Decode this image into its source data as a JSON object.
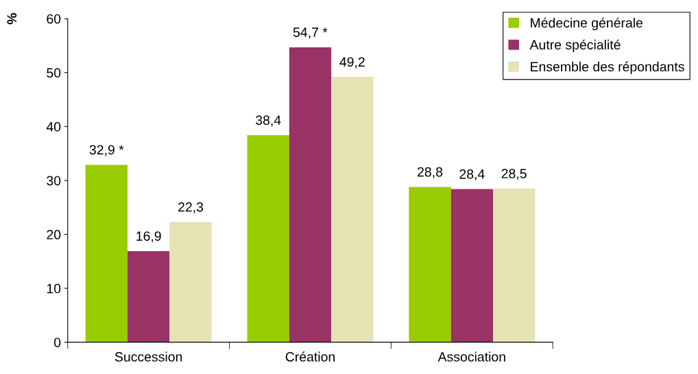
{
  "chart_data": {
    "type": "bar",
    "ylabel": "%",
    "categories": [
      "Succession",
      "Création",
      "Association"
    ],
    "series": [
      {
        "name": "Médecine générale",
        "color": "#99cc00",
        "values": [
          32.9,
          38.4,
          28.8
        ],
        "value_labels": [
          "32,9 *",
          "38,4",
          "28,8"
        ]
      },
      {
        "name": "Autre spécialité",
        "color": "#993366",
        "values": [
          16.9,
          54.7,
          28.4
        ],
        "value_labels": [
          "16,9",
          "54,7 *",
          "28,4"
        ]
      },
      {
        "name": "Ensemble des répondants",
        "color": "#e6e2b4",
        "values": [
          22.3,
          49.2,
          28.5
        ],
        "value_labels": [
          "22,3",
          "49,2",
          "28,5"
        ]
      }
    ],
    "ylim": [
      0,
      60
    ],
    "yticks": [
      0,
      10,
      20,
      30,
      40,
      50,
      60
    ],
    "grid": false,
    "legend": "top right"
  }
}
